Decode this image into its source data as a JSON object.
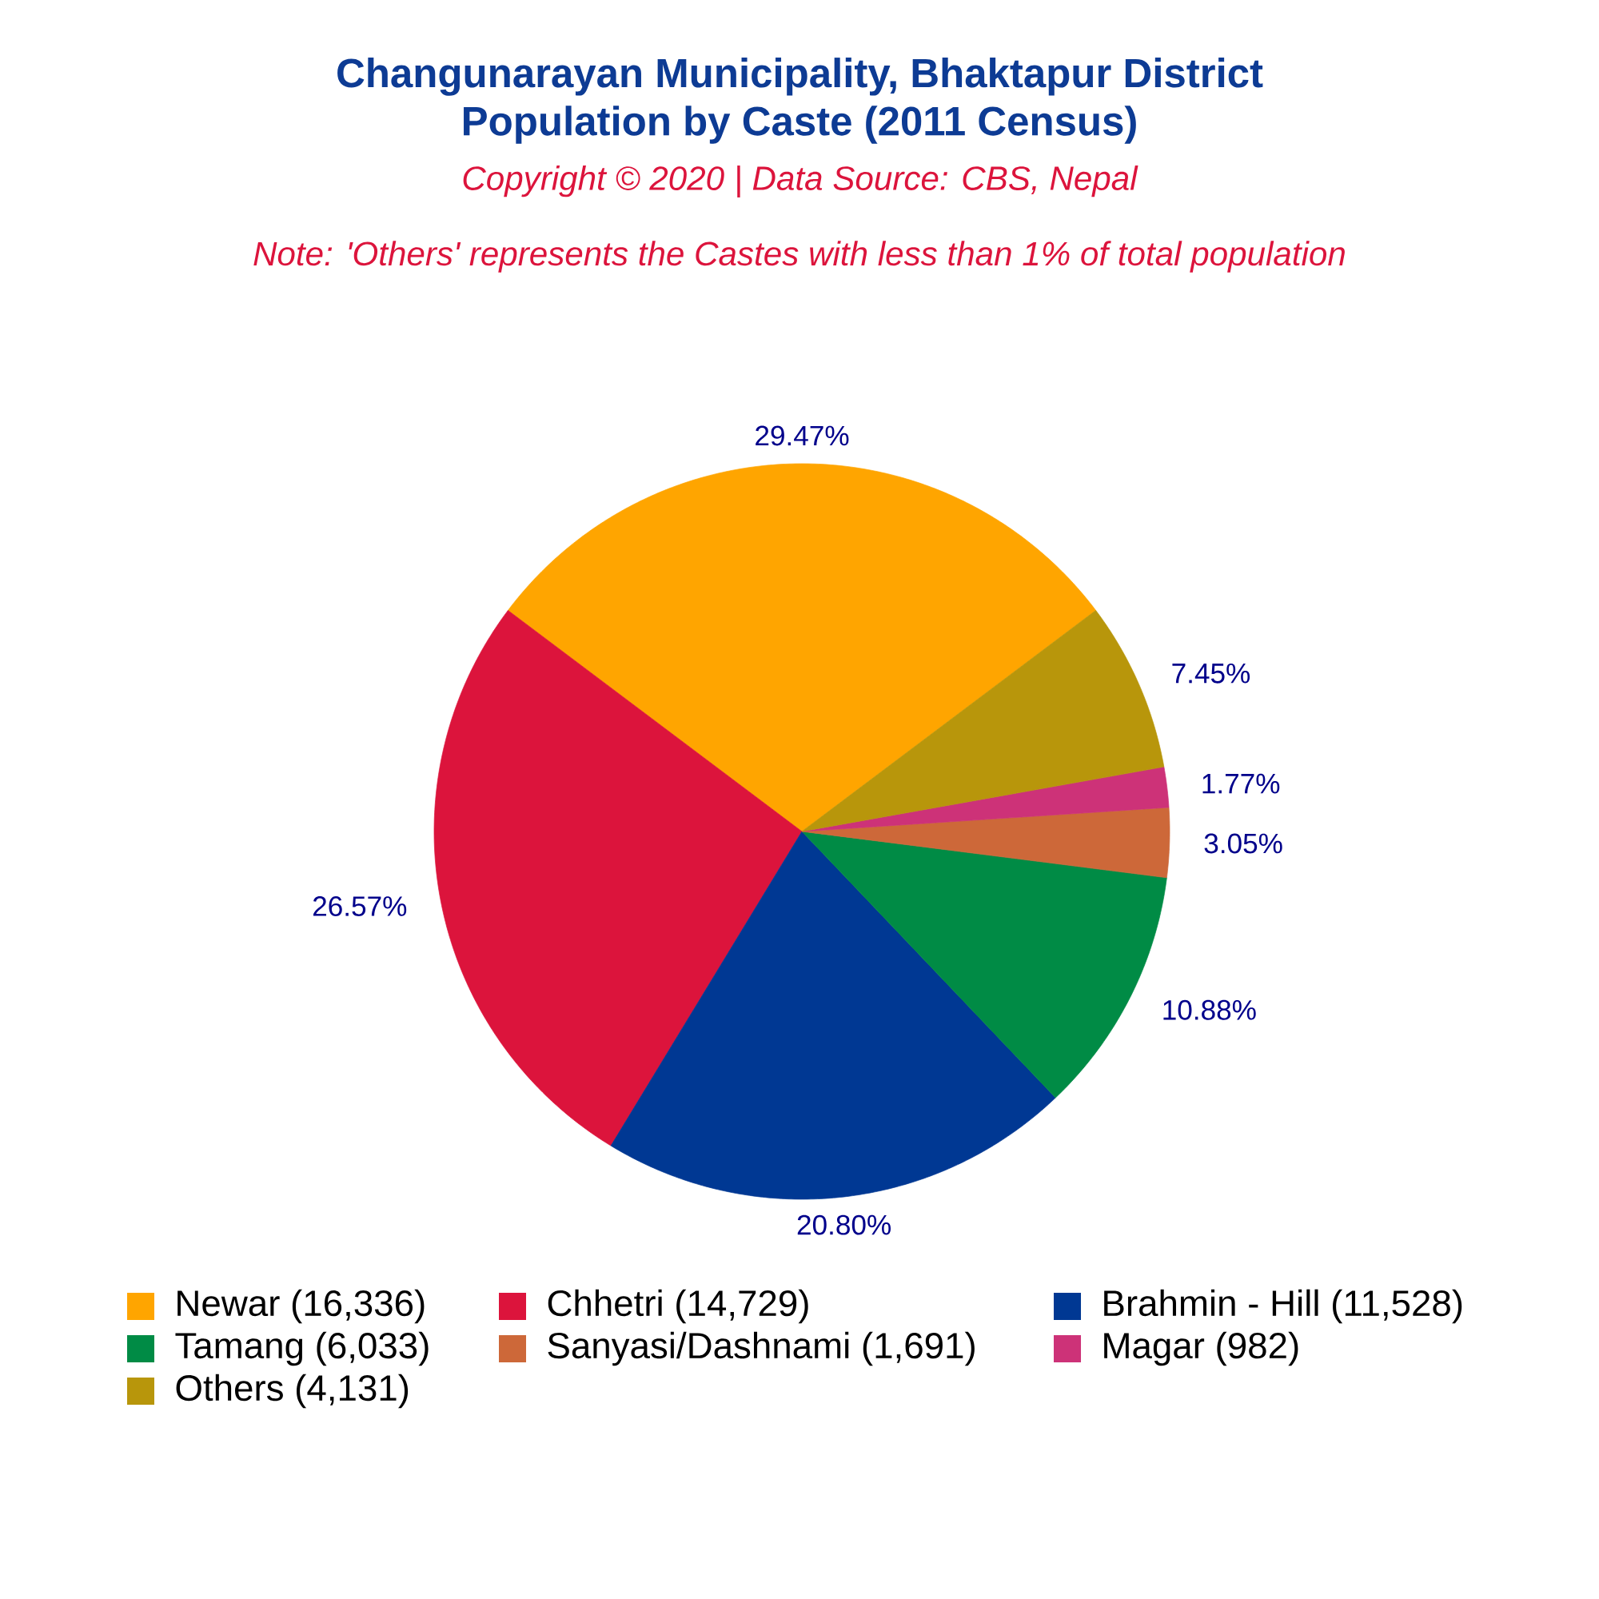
{
  "chart_data": {
    "type": "pie",
    "title": "Changunarayan Municipality, Bhaktapur District",
    "subtitle": "Population by Caste (2011 Census)",
    "annotations": [
      "Copyright © 2020 | Data Source: CBS, Nepal",
      "Note: 'Others' represents the Castes with less than 1% of total population"
    ],
    "categories": [
      "Newar (16,336)",
      "Chhetri (14,729)",
      "Brahmin - Hill (11,528)",
      "Tamang (6,033)",
      "Sanyasi/Dashnami (1,691)",
      "Magar (982)",
      "Others (4,131)"
    ],
    "values": [
      29.47,
      26.57,
      20.8,
      10.88,
      3.05,
      1.77,
      7.45
    ],
    "value_labels": [
      "29.47%",
      "26.57%",
      "20.80%",
      "10.88%",
      "3.05%",
      "1.77%",
      "7.45%"
    ],
    "colors": [
      "#ffa500",
      "#dc143c",
      "#003893",
      "#008b45",
      "#cd6839",
      "#cd3278",
      "#b8960b"
    ],
    "legend": "bottom"
  }
}
